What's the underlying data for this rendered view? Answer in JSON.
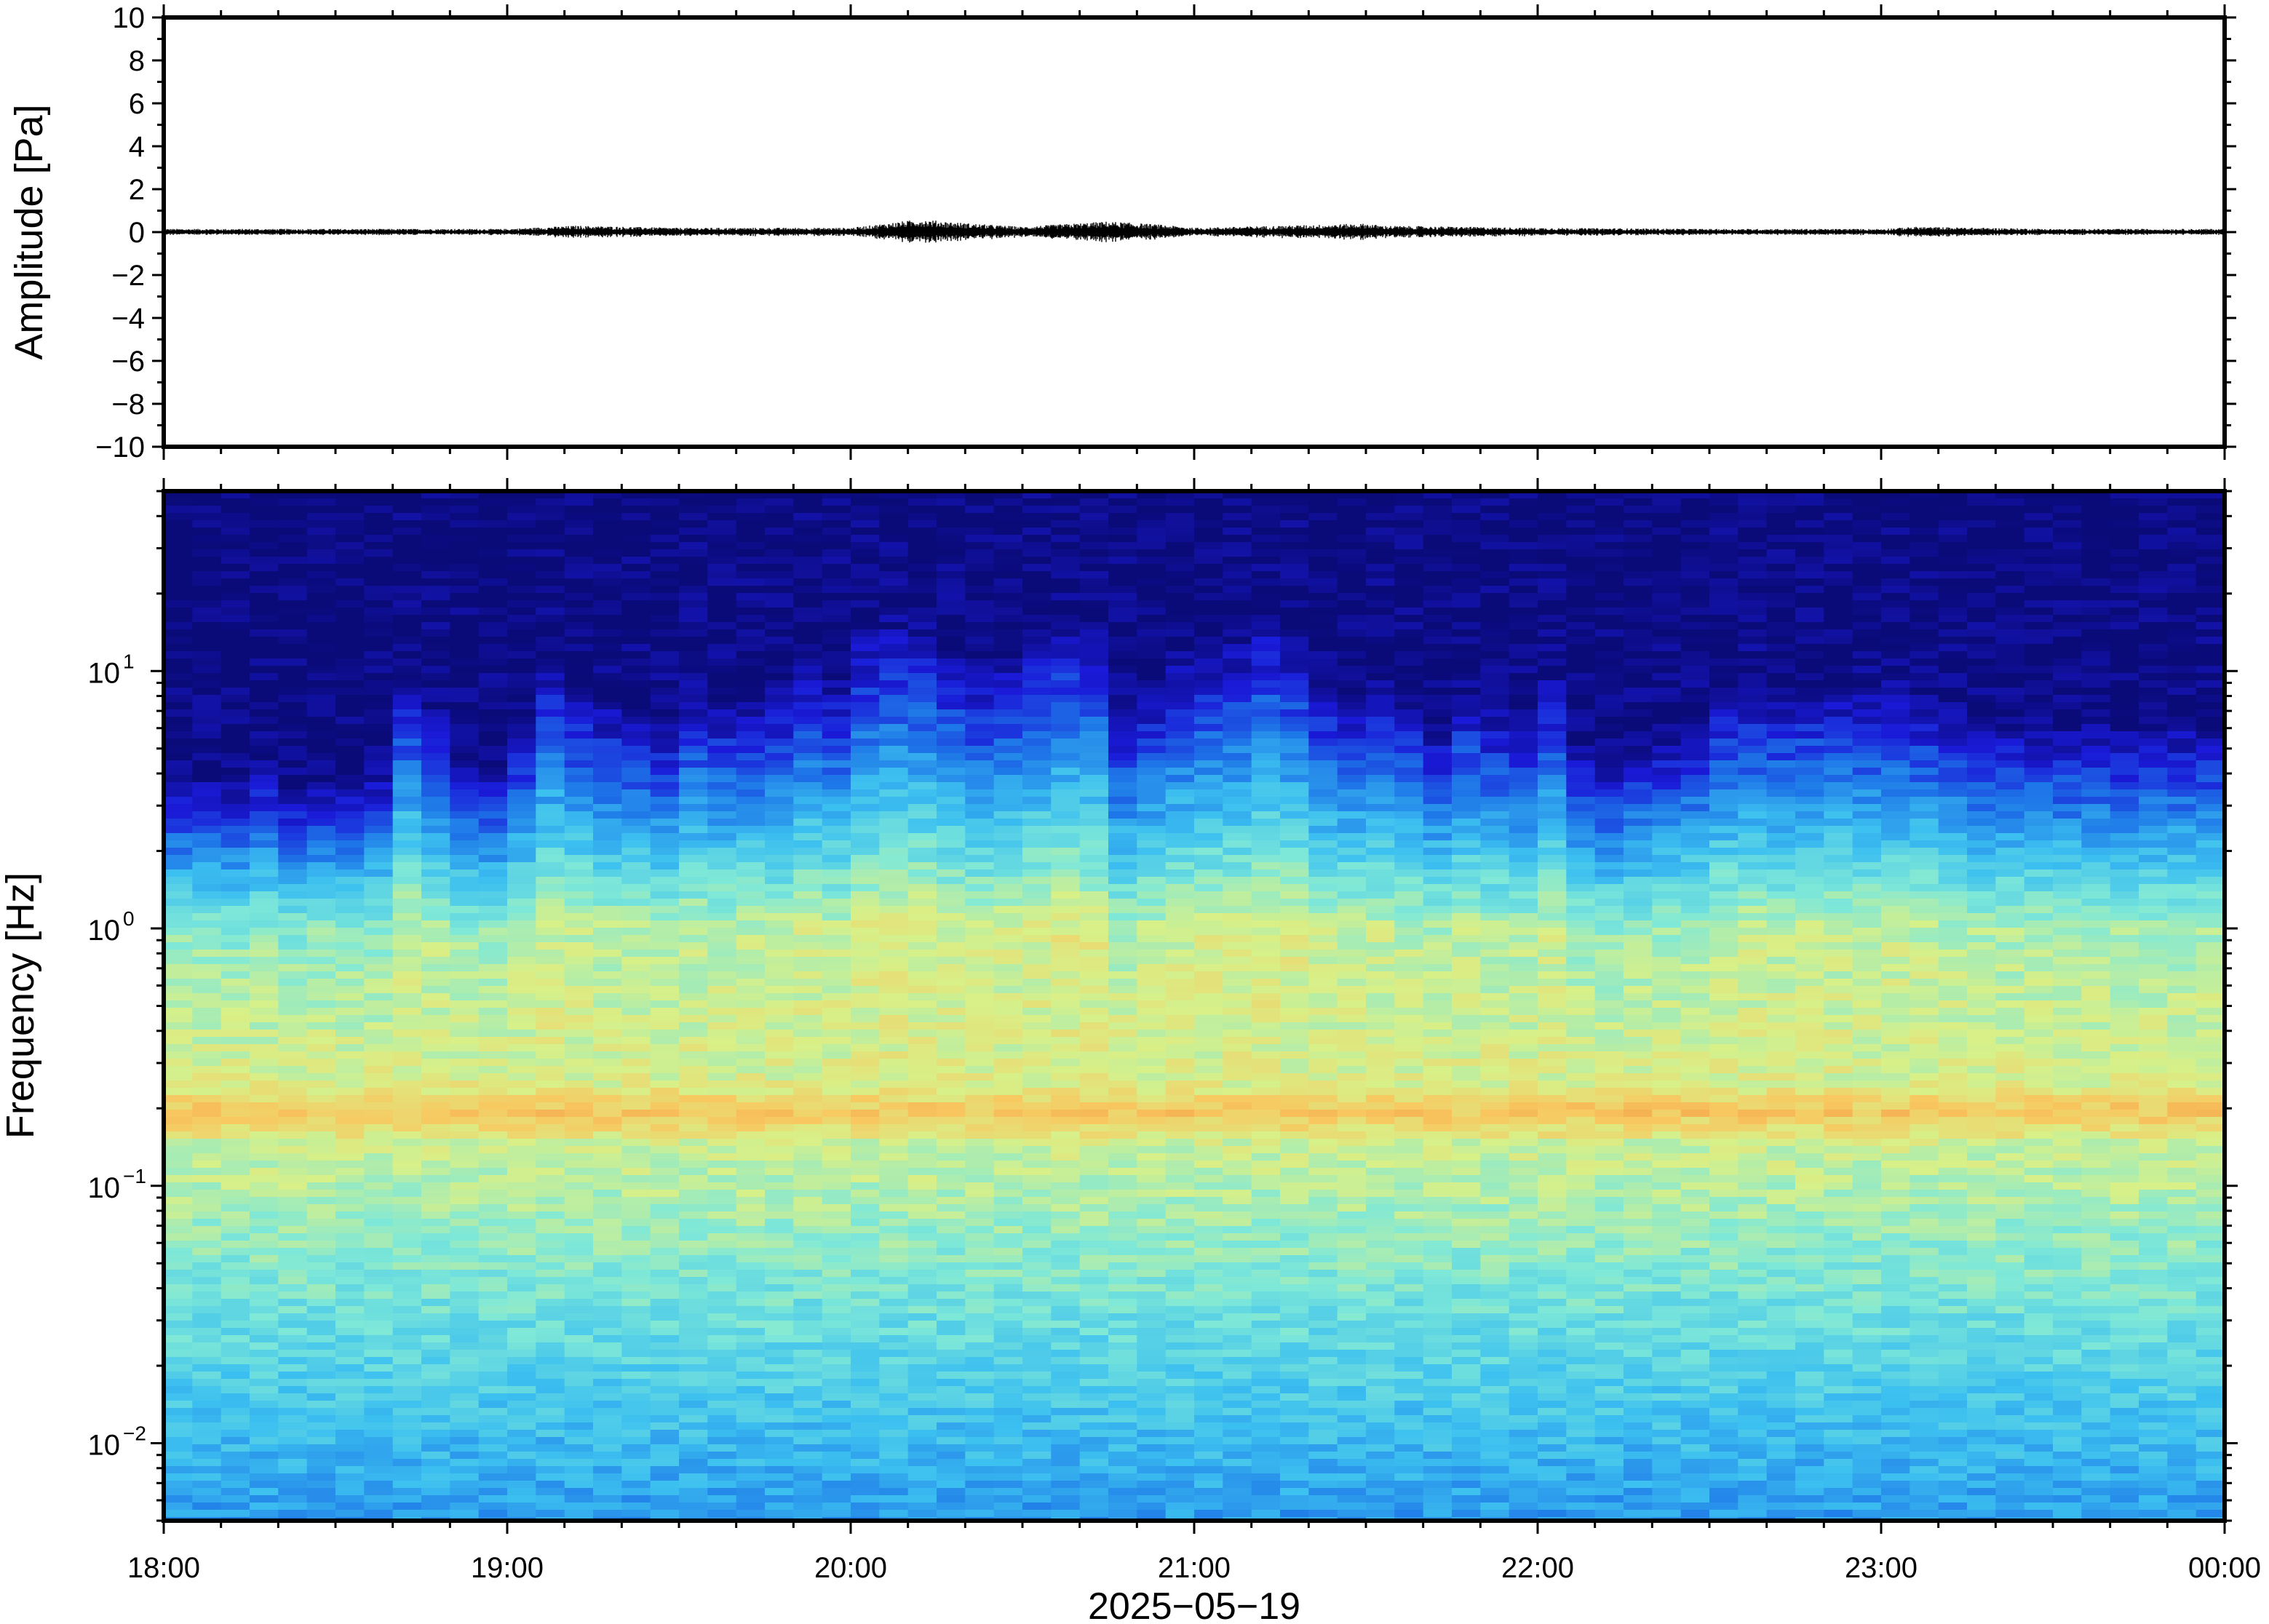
{
  "chart_data": [
    {
      "type": "line",
      "panel": "amplitude",
      "ylabel": "Amplitude [Pa]",
      "ylim": [
        -10,
        10
      ],
      "yticks": [
        10,
        8,
        6,
        4,
        2,
        0,
        -2,
        -4,
        -6,
        -8,
        -10
      ],
      "ytick_labels": [
        "10",
        "8",
        "6",
        "4",
        "2",
        "0",
        "−2",
        "−4",
        "−6",
        "−8",
        "−10"
      ],
      "x_start": "18:00",
      "x_end": "00:00",
      "series": [
        {
          "x_hours": [
            18.0,
            18.5,
            19.0,
            19.2,
            19.5,
            20.0,
            20.2,
            20.35,
            20.5,
            20.75,
            20.9,
            21.0,
            21.5,
            21.55,
            22.0,
            22.5,
            23.0,
            23.1,
            23.5,
            24.0
          ],
          "envelope": [
            0.15,
            0.15,
            0.15,
            0.3,
            0.2,
            0.2,
            0.6,
            0.4,
            0.25,
            0.5,
            0.35,
            0.2,
            0.4,
            0.3,
            0.2,
            0.15,
            0.15,
            0.25,
            0.15,
            0.15
          ],
          "color": "#000000"
        }
      ]
    },
    {
      "type": "heatmap",
      "panel": "spectrogram",
      "ylabel": "Frequency [Hz]",
      "xlabel": "2025−05−19",
      "y_scale": "log",
      "ylim": [
        0.005,
        50
      ],
      "ytick_labels": [
        {
          "base": "10",
          "exp": "1",
          "value": 10
        },
        {
          "base": "10",
          "exp": "0",
          "value": 1
        },
        {
          "base": "10",
          "exp": "−1",
          "value": 0.1
        },
        {
          "base": "10",
          "exp": "−2",
          "value": 0.01
        }
      ],
      "xtick_labels": [
        "18:00",
        "19:00",
        "20:00",
        "21:00",
        "22:00",
        "23:00",
        "00:00"
      ],
      "colormap": [
        "#0a0a78",
        "#1a1ad8",
        "#1e78e8",
        "#3cc0f0",
        "#7ee8d8",
        "#d8f088",
        "#f8c860",
        "#f09040"
      ],
      "activity_by_column": [
        0.3,
        0.32,
        0.3,
        0.35,
        0.28,
        0.3,
        0.32,
        0.35,
        0.68,
        0.55,
        0.4,
        0.35,
        0.5,
        0.72,
        0.62,
        0.58,
        0.55,
        0.5,
        0.62,
        0.58,
        0.6,
        0.62,
        0.7,
        0.66,
        0.82,
        0.85,
        0.84,
        0.76,
        0.7,
        0.72,
        0.8,
        0.86,
        0.84,
        0.55,
        0.62,
        0.72,
        0.74,
        0.78,
        0.86,
        0.8,
        0.66,
        0.62,
        0.66,
        0.58,
        0.5,
        0.62,
        0.55,
        0.52,
        0.66,
        0.42,
        0.38,
        0.44,
        0.46,
        0.52,
        0.62,
        0.64,
        0.62,
        0.64,
        0.62,
        0.62,
        0.64,
        0.6,
        0.56,
        0.52,
        0.5,
        0.5,
        0.5,
        0.5,
        0.48,
        0.5,
        0.5,
        0.5
      ],
      "peak_band_hz": [
        0.15,
        0.25
      ]
    }
  ]
}
